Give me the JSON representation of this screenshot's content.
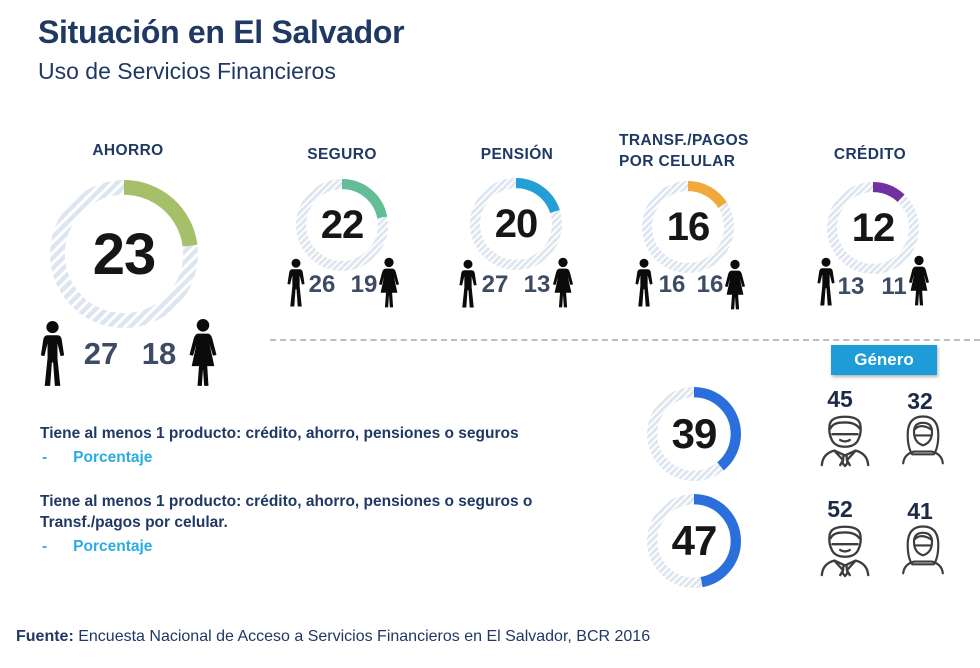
{
  "header": {
    "title": "Situación en El Salvador",
    "subtitle": "Uso de Servicios Financieros"
  },
  "colors": {
    "navy": "#203864",
    "cyan_accent": "#2AACE2",
    "gender_box_blue": "#1E9CD7",
    "ring_background": "#DDE6F0",
    "gender_number": "#3E4C63"
  },
  "gender_box": {
    "label": "Género"
  },
  "chart_data": [
    {
      "type": "pie",
      "title": "AHORRO",
      "value": 23,
      "male": 27,
      "female": 18,
      "color": "#A6C06A",
      "legend": "ring shows % of total, male/female % beside figures"
    },
    {
      "type": "pie",
      "title": "SEGURO",
      "value": 22,
      "male": 26,
      "female": 19,
      "color": "#63BD97"
    },
    {
      "type": "pie",
      "title": "PENSIÓN",
      "value": 20,
      "male": 27,
      "female": 13,
      "color": "#239FD5"
    },
    {
      "type": "pie",
      "title": "TRANSF./PAGOS POR CELULAR",
      "value": 16,
      "male": 16,
      "female": 16,
      "color": "#F2A93B"
    },
    {
      "type": "pie",
      "title": "CRÉDITO",
      "value": 12,
      "male": 13,
      "female": 11,
      "color": "#7030A0"
    },
    {
      "type": "pie",
      "title": "Tiene al menos 1 producto: crédito, ahorro, pensiones o seguros",
      "value": 39,
      "male": 45,
      "female": 32,
      "color": "#2B6FDD"
    },
    {
      "type": "pie",
      "title": "Tiene al menos 1 producto: crédito, ahorro, pensiones o seguros o Transf./pagos por celular.",
      "value": 47,
      "male": 52,
      "female": 41,
      "color": "#2B6FDD"
    }
  ],
  "notes": [
    {
      "text": "Tiene al menos 1 producto: crédito, ahorro, pensiones o seguros",
      "bullet": "-",
      "sub": "Porcentaje"
    },
    {
      "text": "Tiene al menos 1 producto: crédito, ahorro, pensiones o seguros o Transf./pagos por celular.",
      "bullet": "-",
      "sub": "Porcentaje"
    }
  ],
  "footer": {
    "label": "Fuente:",
    "text": " Encuesta Nacional de Acceso a Servicios Financieros en El Salvador, BCR 2016"
  }
}
